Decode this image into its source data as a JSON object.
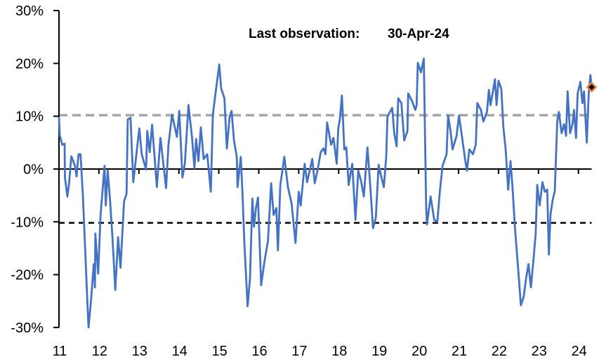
{
  "chart_data": {
    "type": "line",
    "title": "",
    "xlabel": "",
    "ylabel": "",
    "annotation": {
      "label": "Last observation:",
      "value": "30-Apr-24"
    },
    "x_tick_labels": [
      "11",
      "12",
      "13",
      "14",
      "15",
      "16",
      "17",
      "18",
      "19",
      "20",
      "21",
      "22",
      "23",
      "24"
    ],
    "x_ticks": [
      2011,
      2012,
      2013,
      2014,
      2015,
      2016,
      2017,
      2018,
      2019,
      2020,
      2021,
      2022,
      2023,
      2024
    ],
    "xlim": [
      2011,
      2024.33
    ],
    "y_tick_labels": [
      "30%",
      "20%",
      "10%",
      "0%",
      "-10%",
      "-20%",
      "-30%"
    ],
    "y_ticks": [
      30,
      20,
      10,
      0,
      -10,
      -20,
      -30
    ],
    "ylim": [
      -30,
      30
    ],
    "grid": false,
    "reference_lines": [
      {
        "value": 10.2,
        "style": "dashed",
        "color": "#a6a6a6"
      },
      {
        "value": -10.2,
        "style": "dashed",
        "color": "#000000"
      }
    ],
    "series": [
      {
        "color": "#4472c4",
        "x": [
          2011.0,
          2011.02,
          2011.08,
          2011.14,
          2011.15,
          2011.21,
          2011.25,
          2011.31,
          2011.4,
          2011.44,
          2011.49,
          2011.54,
          2011.6,
          2011.66,
          2011.71,
          2011.74,
          2011.8,
          2011.87,
          2011.9,
          2011.91,
          2011.98,
          2012.04,
          2012.14,
          2012.17,
          2012.22,
          2012.28,
          2012.34,
          2012.41,
          2012.48,
          2012.54,
          2012.63,
          2012.69,
          2012.72,
          2012.79,
          2012.86,
          2012.95,
          2013.01,
          2013.07,
          2013.18,
          2013.21,
          2013.27,
          2013.33,
          2013.45,
          2013.54,
          2013.68,
          2013.74,
          2013.83,
          2013.95,
          2014.01,
          2014.09,
          2014.15,
          2014.24,
          2014.33,
          2014.39,
          2014.43,
          2014.49,
          2014.55,
          2014.62,
          2014.71,
          2014.8,
          2014.85,
          2014.91,
          2014.97,
          2015.01,
          2015.06,
          2015.14,
          2015.2,
          2015.27,
          2015.32,
          2015.38,
          2015.45,
          2015.47,
          2015.55,
          2015.59,
          2015.64,
          2015.72,
          2015.78,
          2015.84,
          2015.88,
          2015.93,
          2015.98,
          2016.06,
          2016.14,
          2016.23,
          2016.31,
          2016.37,
          2016.44,
          2016.48,
          2016.54,
          2016.64,
          2016.73,
          2016.82,
          2016.92,
          2017.0,
          2017.05,
          2017.15,
          2017.21,
          2017.34,
          2017.4,
          2017.48,
          2017.55,
          2017.62,
          2017.67,
          2017.71,
          2017.81,
          2017.87,
          2017.95,
          2017.99,
          2018.03,
          2018.08,
          2018.14,
          2018.19,
          2018.25,
          2018.34,
          2018.42,
          2018.49,
          2018.56,
          2018.63,
          2018.72,
          2018.78,
          2018.86,
          2018.93,
          2019.0,
          2019.07,
          2019.13,
          2019.19,
          2019.22,
          2019.34,
          2019.39,
          2019.45,
          2019.49,
          2019.57,
          2019.64,
          2019.72,
          2019.74,
          2019.83,
          2019.92,
          2019.95,
          2019.98,
          2020.06,
          2020.13,
          2020.19,
          2020.21,
          2020.3,
          2020.39,
          2020.47,
          2020.53,
          2020.6,
          2020.7,
          2020.74,
          2020.8,
          2020.85,
          2020.95,
          2021.01,
          2021.09,
          2021.17,
          2021.21,
          2021.27,
          2021.36,
          2021.43,
          2021.47,
          2021.56,
          2021.62,
          2021.71,
          2021.76,
          2021.8,
          2021.86,
          2021.91,
          2021.95,
          2022.0,
          2022.07,
          2022.12,
          2022.18,
          2022.24,
          2022.3,
          2022.35,
          2022.41,
          2022.47,
          2022.56,
          2022.63,
          2022.69,
          2022.75,
          2022.81,
          2022.87,
          2022.93,
          2022.97,
          2023.03,
          2023.1,
          2023.16,
          2023.22,
          2023.26,
          2023.3,
          2023.35,
          2023.41,
          2023.47,
          2023.51,
          2023.58,
          2023.64,
          2023.69,
          2023.73,
          2023.79,
          2023.85,
          2023.89,
          2023.94,
          2023.98,
          2024.05,
          2024.1,
          2024.14,
          2024.21,
          2024.26,
          2024.3,
          2024.33
        ],
        "y": [
          9.9,
          6.4,
          4.6,
          4.8,
          -1.6,
          -5.2,
          -2.9,
          2.4,
          0.6,
          -1.4,
          2.8,
          2.8,
          -5.2,
          -16.2,
          -25.1,
          -30,
          -25.1,
          -18,
          -22.4,
          -12.2,
          -19.8,
          -8.7,
          0.6,
          -6.9,
          -0.3,
          -6.1,
          -13.1,
          -22.9,
          -12.9,
          -18.7,
          -6.1,
          -4.7,
          9.4,
          9.7,
          -2.5,
          3.7,
          7.7,
          2.8,
          -0.1,
          7.2,
          3.2,
          8.4,
          -3.4,
          5.9,
          -3.6,
          4.6,
          10.3,
          6.1,
          11,
          -1.6,
          1,
          12.1,
          5.9,
          0.1,
          5.7,
          1.5,
          7.9,
          1.9,
          2.8,
          -4.3,
          10.3,
          13.9,
          17.4,
          19.8,
          15.2,
          13.4,
          3.9,
          9.9,
          11,
          5.4,
          2.3,
          -3.4,
          2.3,
          -4.3,
          -14,
          -26,
          -20.7,
          -5.6,
          -10.9,
          -7.4,
          -5.4,
          -22,
          -17.6,
          -13.6,
          -2.7,
          -8.7,
          -7.4,
          -15.4,
          -3,
          2.3,
          -3.4,
          -6.5,
          -14,
          -4.3,
          -6.9,
          1,
          -2.5,
          1.9,
          -2.7,
          0.1,
          3.2,
          3.9,
          2.8,
          8.8,
          4.6,
          5.9,
          1,
          7.7,
          9.4,
          13.9,
          3.7,
          4.1,
          -3,
          1,
          -9.6,
          -0.3,
          -2.3,
          -5.2,
          4.1,
          -2.1,
          -11.2,
          -9.2,
          0.8,
          -1.6,
          -3.4,
          2.3,
          9.9,
          11.6,
          6.8,
          4.3,
          13.4,
          12.5,
          5.4,
          7.2,
          14.3,
          13,
          11.2,
          12.1,
          20.1,
          18.3,
          20.9,
          -7.4,
          -10.5,
          -5.2,
          -9.6,
          -10,
          -4.3,
          0.6,
          2.8,
          10.1,
          7.2,
          3.7,
          6.3,
          10.1,
          5.9,
          1.5,
          -0.3,
          3.7,
          2.8,
          4.6,
          12.5,
          11.2,
          9,
          10.8,
          15,
          12.1,
          14.7,
          17,
          12.1,
          16.7,
          15.2,
          8.1,
          3.7,
          -3.9,
          1.5,
          -3.4,
          -10.9,
          -16.7,
          -25.8,
          -24.2,
          -20.7,
          -18,
          -22.4,
          -17.6,
          -12.3,
          -3,
          -6.9,
          -2.5,
          -4.3,
          -3.9,
          -16.2,
          -8.7,
          -6.1,
          -4.1,
          9,
          10.8,
          6.8,
          8.5,
          6.3,
          14.7,
          6.8,
          8.5,
          11.2,
          5.9,
          14.3,
          16.5,
          12.5,
          14.7,
          5,
          14.7,
          17.8,
          15.5
        ]
      }
    ],
    "last_point": {
      "x": 2024.33,
      "y": 15.5,
      "fill": "#000000",
      "stroke": "#ed7d31"
    }
  }
}
